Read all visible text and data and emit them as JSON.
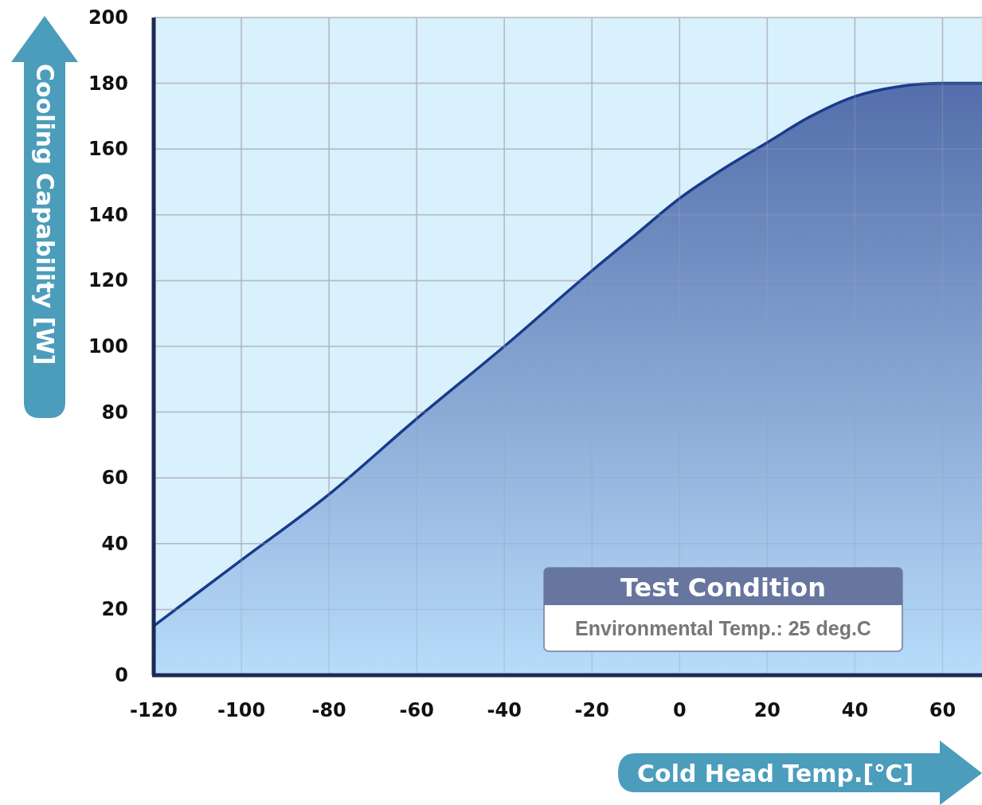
{
  "chart_data": {
    "type": "area",
    "xlabel": "Cold Head Temp.[℃]",
    "ylabel": "Cooling Capability [W]",
    "x": [
      -120,
      -110,
      -100,
      -80,
      -60,
      -40,
      -20,
      -10,
      0,
      10,
      20,
      30,
      40,
      50,
      60,
      69
    ],
    "series": [
      {
        "color": "#1a3a8c",
        "values": [
          15,
          25,
          35,
          55,
          78,
          100,
          123,
          134,
          145,
          154,
          162,
          170,
          176,
          179,
          180,
          180
        ]
      }
    ],
    "xlim": [
      -120,
      69
    ],
    "ylim": [
      0,
      200
    ],
    "xticks": [
      -120,
      -100,
      -80,
      -60,
      -40,
      -20,
      0,
      20,
      40,
      60
    ],
    "yticks": [
      0,
      20,
      40,
      60,
      80,
      100,
      120,
      140,
      160,
      180,
      200
    ],
    "grid": true,
    "annotations": [
      "Test Condition",
      "Environmental Temp.: 25 deg.C"
    ]
  }
}
